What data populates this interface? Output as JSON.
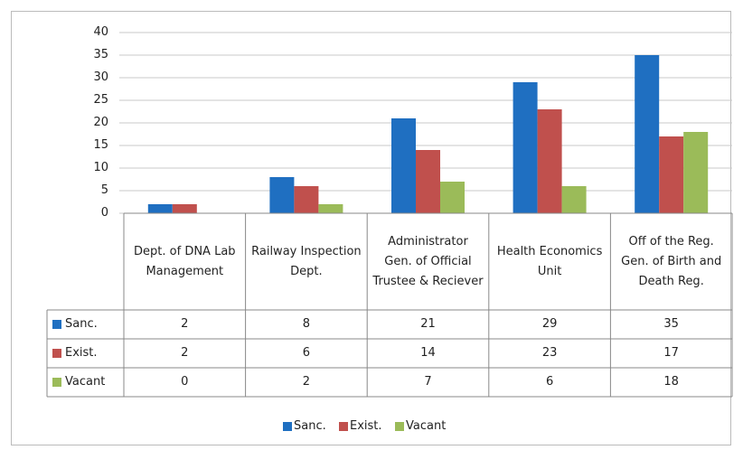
{
  "chart_data": {
    "type": "bar",
    "categories": [
      "Dept. of DNA Lab Management",
      "Railway Inspection Dept.",
      "Administrator Gen. of Official Trustee & Reciever",
      "Health Economics Unit",
      "Off of the Reg. Gen. of Birth and Death Reg."
    ],
    "series": [
      {
        "name": "Sanc.",
        "color": "#1f6fc1",
        "values": [
          2,
          8,
          21,
          29,
          35
        ]
      },
      {
        "name": "Exist.",
        "color": "#c0504d",
        "values": [
          2,
          6,
          14,
          23,
          17
        ]
      },
      {
        "name": "Vacant",
        "color": "#9bbb59",
        "values": [
          0,
          2,
          7,
          6,
          18
        ]
      }
    ],
    "ylim": [
      0,
      40
    ],
    "yticks": [
      0,
      5,
      10,
      15,
      20,
      25,
      30,
      35,
      40
    ],
    "grid": true,
    "legend": "bottom",
    "data_table": true
  }
}
